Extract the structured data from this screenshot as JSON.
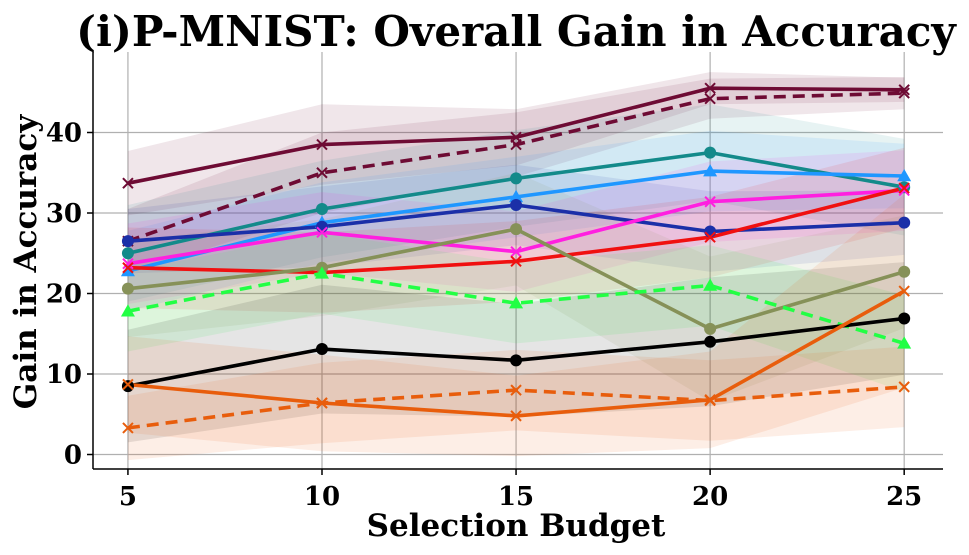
{
  "chart_data": {
    "type": "line",
    "title": "(i)P-MNIST: Overall Gain in Accuracy",
    "xlabel": "Selection Budget",
    "ylabel": "Gain in Accuracy",
    "x": [
      5,
      10,
      15,
      20,
      25
    ],
    "xticks": [
      5,
      10,
      15,
      20,
      25
    ],
    "yticks": [
      0,
      10,
      20,
      30,
      40
    ],
    "xlim": [
      4.1,
      26
    ],
    "ylim": [
      -1.8,
      50
    ],
    "grid": true,
    "legend": "none",
    "series": [
      {
        "name": "series-dark-maroon-solid",
        "color": "#6e0b34",
        "style": "solid",
        "marker": "x",
        "values": [
          33.7,
          38.5,
          39.4,
          45.5,
          45.3
        ],
        "band": [
          4,
          5,
          3.5,
          2,
          1.5
        ]
      },
      {
        "name": "series-dark-maroon-dashed",
        "color": "#6e0b34",
        "style": "dashed",
        "marker": "x",
        "values": [
          26.5,
          35.0,
          38.5,
          44.2,
          44.9
        ],
        "band": [
          4,
          5,
          4,
          2.5,
          2
        ]
      },
      {
        "name": "series-teal",
        "color": "#138a8a",
        "style": "solid",
        "marker": "circle",
        "values": [
          25.0,
          30.5,
          34.3,
          37.5,
          33.2
        ],
        "band": [
          6,
          6,
          6,
          6,
          6
        ]
      },
      {
        "name": "series-sky-blue",
        "color": "#1f97ff",
        "style": "solid",
        "marker": "triangle",
        "values": [
          22.8,
          28.8,
          32.0,
          35.2,
          34.6
        ],
        "band": [
          5,
          5,
          5,
          5,
          4
        ]
      },
      {
        "name": "series-navy-blue",
        "color": "#1b2fa8",
        "style": "solid",
        "marker": "circle",
        "values": [
          26.5,
          28.3,
          31.0,
          27.7,
          28.8
        ],
        "band": [
          4,
          5,
          5,
          5,
          4
        ]
      },
      {
        "name": "series-magenta",
        "color": "#ff1fe0",
        "style": "solid",
        "marker": "x",
        "values": [
          23.7,
          27.6,
          25.2,
          31.4,
          32.8
        ],
        "band": [
          5,
          5,
          5,
          5,
          5
        ]
      },
      {
        "name": "series-red",
        "color": "#f01010",
        "style": "solid",
        "marker": "x",
        "values": [
          23.2,
          22.6,
          24.0,
          27.0,
          33.1
        ],
        "band": [
          5,
          5,
          5,
          5,
          5
        ]
      },
      {
        "name": "series-olive",
        "color": "#869158",
        "style": "solid",
        "marker": "circle",
        "values": [
          20.6,
          23.2,
          28.0,
          15.6,
          22.7
        ],
        "band": [
          6,
          6,
          7,
          9,
          7
        ]
      },
      {
        "name": "series-lime-dashed",
        "color": "#22ff44",
        "style": "dashed",
        "marker": "triangle",
        "values": [
          17.8,
          22.5,
          18.8,
          21.0,
          13.8
        ],
        "band": [
          5,
          5,
          5,
          5,
          6
        ]
      },
      {
        "name": "series-black",
        "color": "#000000",
        "style": "solid",
        "marker": "circle",
        "values": [
          8.5,
          13.1,
          11.7,
          14.0,
          16.9
        ],
        "band": [
          7,
          8,
          7,
          8,
          7
        ]
      },
      {
        "name": "series-orange-solid",
        "color": "#e85d0c",
        "style": "solid",
        "marker": "x",
        "values": [
          8.7,
          6.4,
          4.8,
          6.8,
          20.3
        ],
        "band": [
          6,
          6,
          5,
          6,
          12
        ]
      },
      {
        "name": "series-orange-dashed",
        "color": "#e85d0c",
        "style": "dashed",
        "marker": "x",
        "values": [
          3.3,
          6.4,
          8.0,
          6.7,
          8.4
        ],
        "band": [
          4,
          5,
          5,
          5,
          5
        ]
      }
    ]
  }
}
